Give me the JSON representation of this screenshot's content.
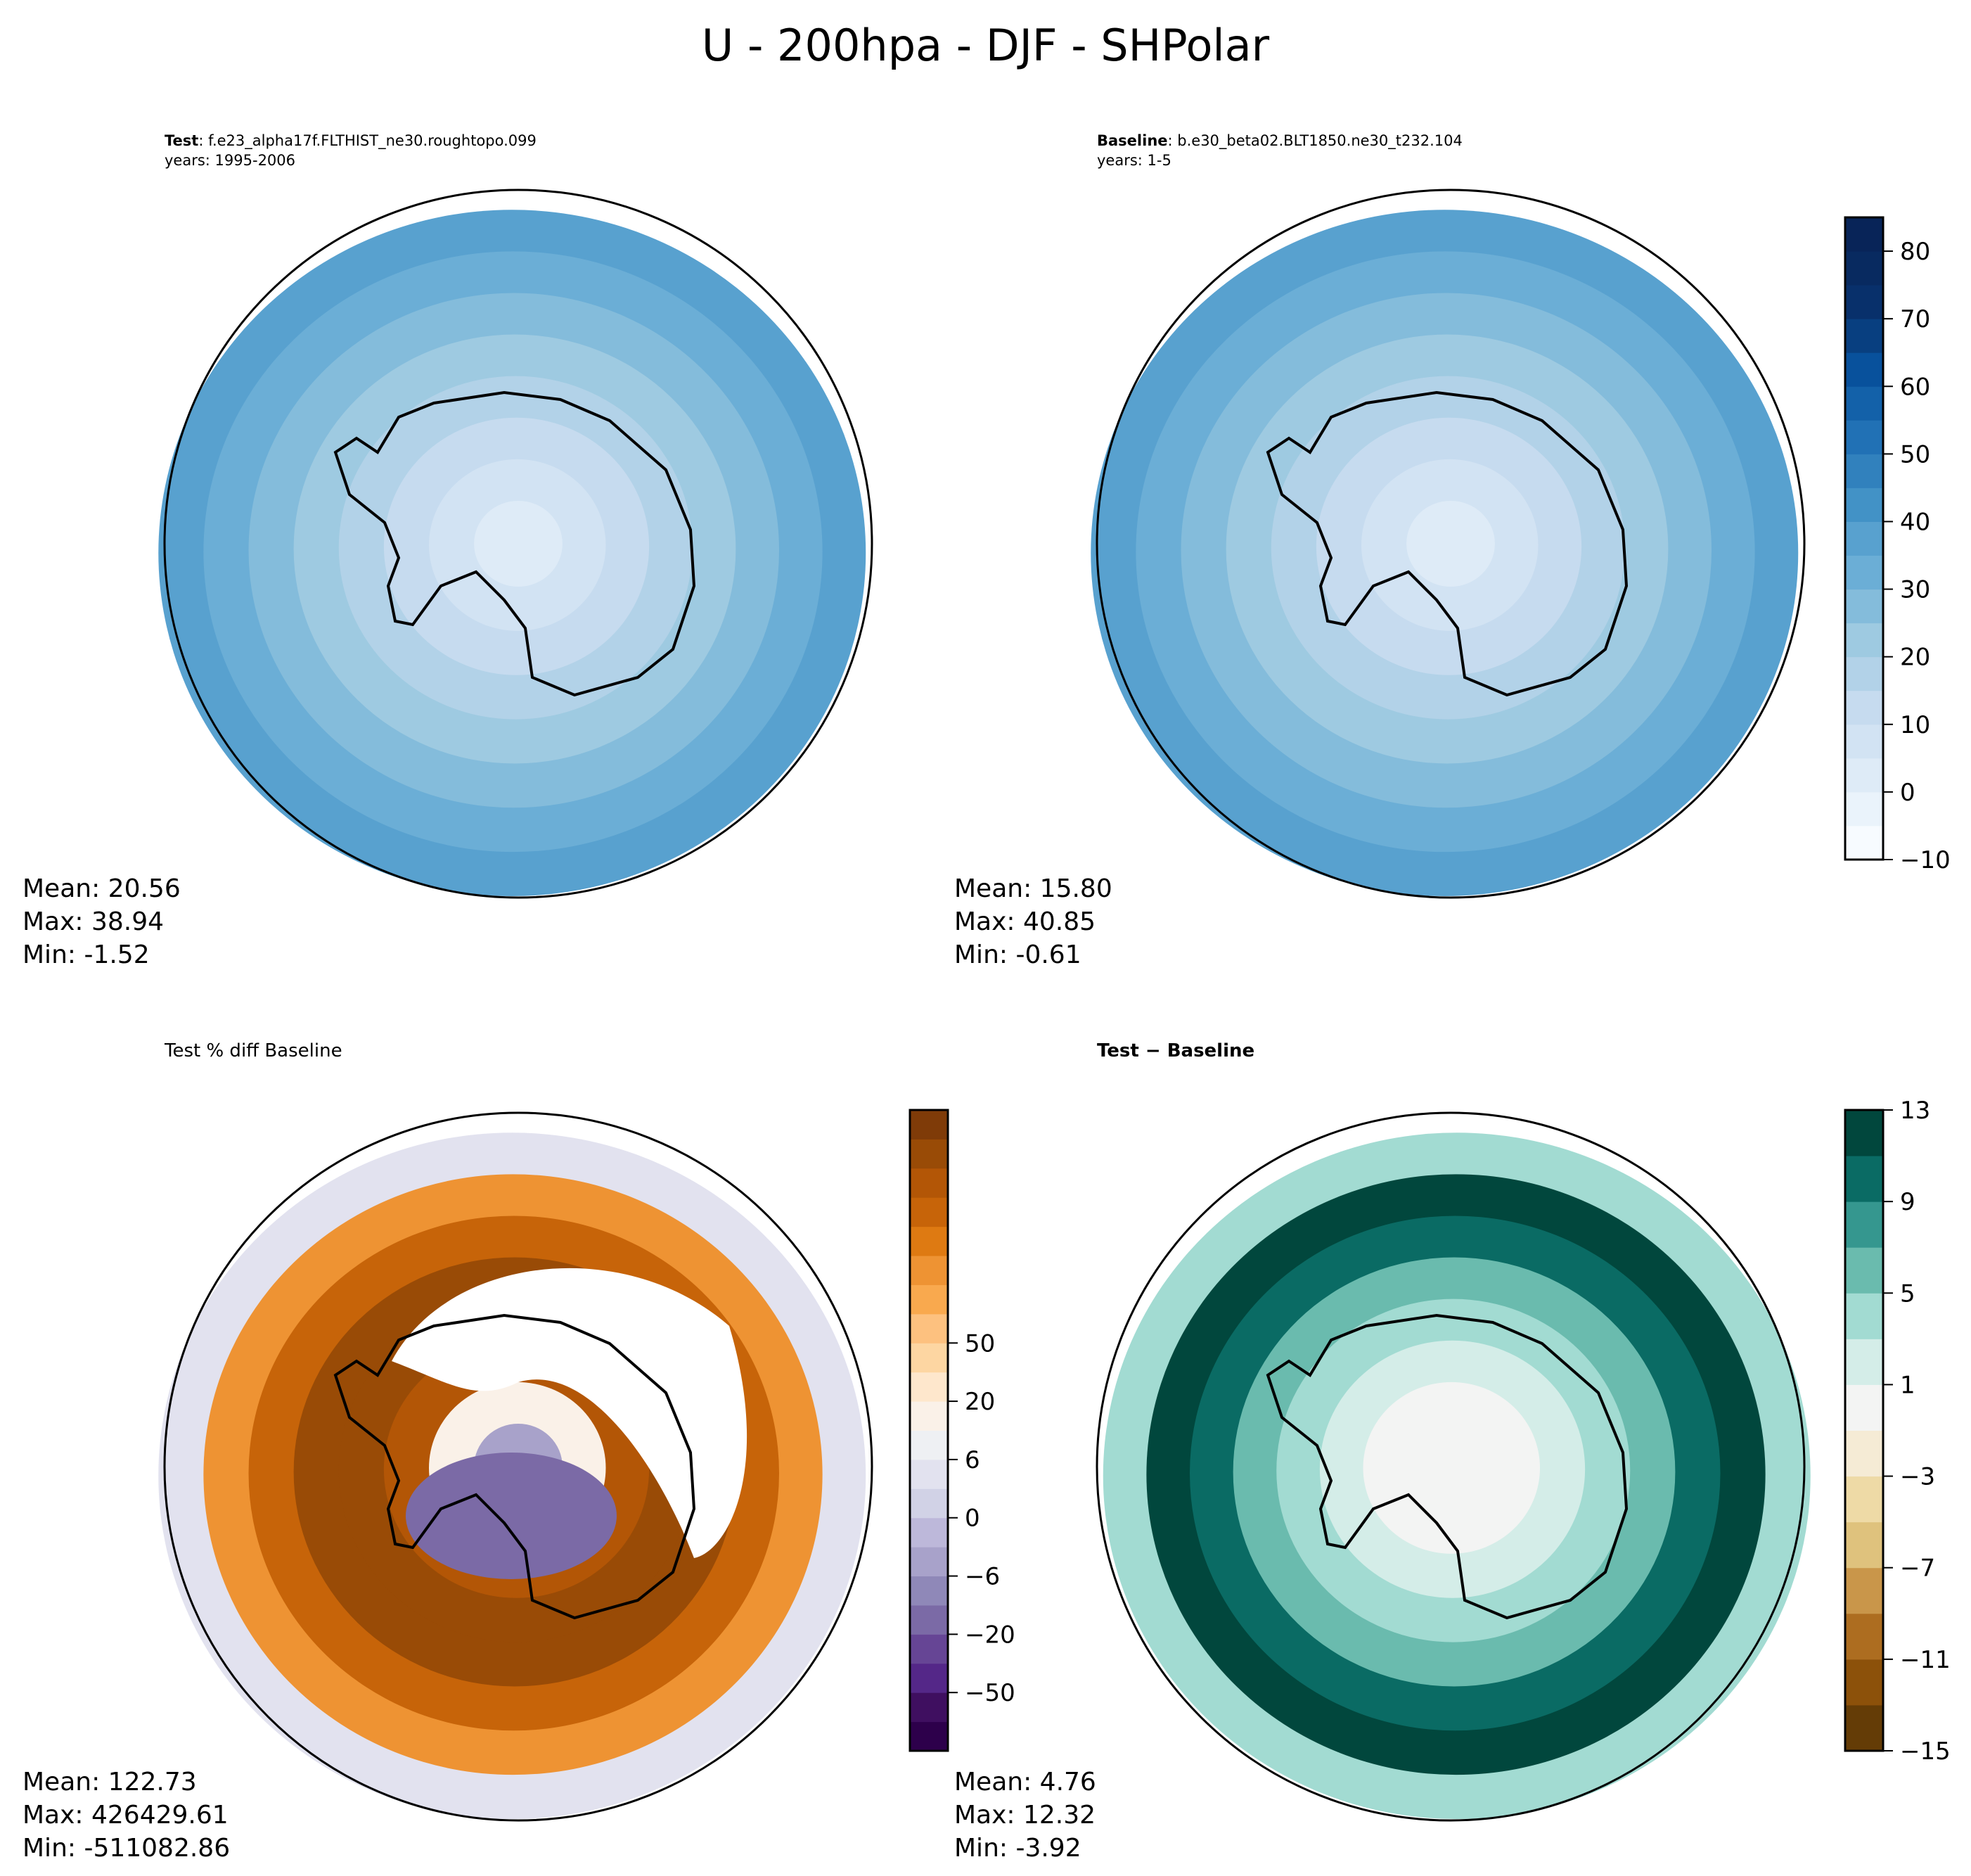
{
  "title": "U - 200hpa - DJF - SHPolar",
  "panels": [
    {
      "id": "test",
      "label_bold": "Test",
      "label_rest": ": f.e23_alpha17f.FLTHIST_ne30.roughtopo.099",
      "years": "years: 1995-2006",
      "stats": {
        "mean": "Mean: 20.56",
        "max": "Max: 38.94",
        "min": "Min: -1.52"
      }
    },
    {
      "id": "baseline",
      "label_bold": "Baseline",
      "label_rest": ": b.e30_beta02.BLT1850.ne30_t232.104",
      "years": "years: 1-5",
      "stats": {
        "mean": "Mean: 15.80",
        "max": "Max: 40.85",
        "min": "Min: -0.61"
      }
    },
    {
      "id": "pctdiff",
      "label_plain": "Test % diff Baseline",
      "stats": {
        "mean": "Mean: 122.73",
        "max": "Max: 426429.61",
        "min": "Min: -511082.86"
      }
    },
    {
      "id": "diff",
      "label_bold": "Test − Baseline",
      "stats": {
        "mean": "Mean:  4.76",
        "max": "Max: 12.32",
        "min": "Min: -3.92"
      }
    }
  ],
  "chart_data": [
    {
      "type": "heatmap",
      "projection": "south polar stereographic",
      "panel": "test",
      "colormap": "Blues",
      "levels_range": [
        -10,
        85
      ],
      "level_step": 5,
      "colorbar_ticks": [
        "−10",
        "0",
        "10",
        "20",
        "30",
        "40",
        "50",
        "60",
        "70",
        "80"
      ],
      "radial_profile_pole_to_edge": [
        0,
        5,
        10,
        15,
        20,
        25,
        30,
        35
      ]
    },
    {
      "type": "heatmap",
      "projection": "south polar stereographic",
      "panel": "baseline",
      "colormap": "Blues",
      "levels_range": [
        -10,
        85
      ],
      "radial_profile_pole_to_edge": [
        0,
        5,
        10,
        15,
        20,
        25,
        30,
        35
      ]
    },
    {
      "type": "heatmap",
      "projection": "south polar stereographic",
      "panel": "pctdiff",
      "colormap": "PuOr_r",
      "colorbar_ticks": [
        "−50",
        "−20",
        "−6",
        "0",
        "6",
        "20",
        "50"
      ],
      "colors": [
        "#2d004b",
        "#3f0f60",
        "#542788",
        "#664595",
        "#7b6aa6",
        "#8f88b8",
        "#a8a2ca",
        "#bdb8da",
        "#d1d2e6",
        "#e2e2ef",
        "#eef0f3",
        "#faf1e8",
        "#fee7cc",
        "#fdd6a2",
        "#fdc17f",
        "#f9a94e",
        "#ee9333",
        "#de7a12",
        "#c76409",
        "#b35606",
        "#994b06",
        "#7f3b08"
      ],
      "radial_profile_pole_to_edge": [
        -20,
        0,
        50,
        60,
        60,
        40,
        20,
        -6
      ]
    },
    {
      "type": "heatmap",
      "projection": "south polar stereographic",
      "panel": "diff",
      "colormap": "BrBG",
      "levels": [
        -15,
        -13,
        -11,
        -9,
        -7,
        -5,
        -3,
        -1,
        1,
        3,
        5,
        7,
        9,
        11,
        13
      ],
      "colorbar_ticks": [
        "−15",
        "−11",
        "−7",
        "−3",
        "1",
        "5",
        "9",
        "13"
      ],
      "colors": [
        "#643c06",
        "#8c510a",
        "#ad6d20",
        "#c9964a",
        "#dfc27d",
        "#eedaa6",
        "#f5ebd5",
        "#f3f4f3",
        "#d4ede8",
        "#a2dbd2",
        "#6abbae",
        "#35978f",
        "#0a6b64",
        "#01473d"
      ],
      "radial_profile_pole_to_edge": [
        0,
        0,
        2,
        4,
        6,
        9,
        11,
        3
      ]
    }
  ]
}
